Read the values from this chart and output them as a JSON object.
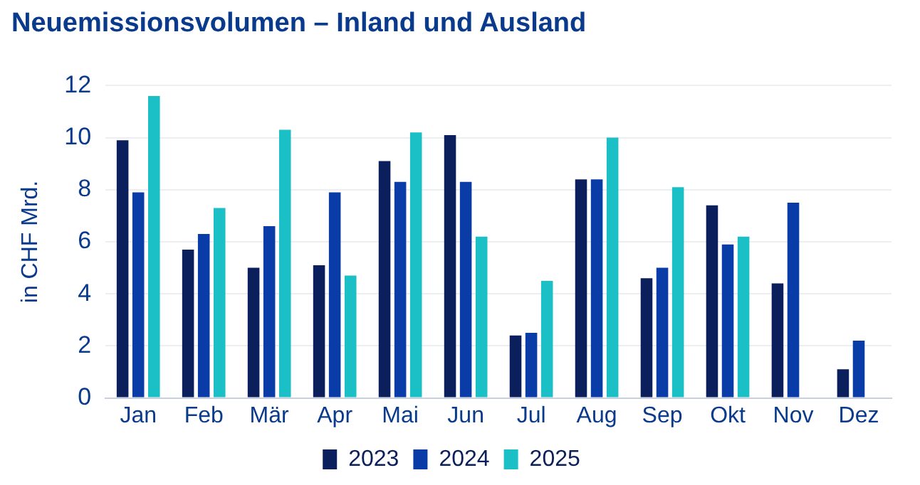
{
  "chart_data": {
    "type": "bar",
    "title": "Neuemissionsvolumen – Inland und Ausland",
    "ylabel": "in CHF Mrd.",
    "categories": [
      "Jan",
      "Feb",
      "Mär",
      "Apr",
      "Mai",
      "Jun",
      "Jul",
      "Aug",
      "Sep",
      "Okt",
      "Nov",
      "Dez"
    ],
    "series": [
      {
        "name": "2023",
        "color": "#0b1f5c",
        "values": [
          9.9,
          5.7,
          5.0,
          5.1,
          9.1,
          10.1,
          2.4,
          8.4,
          4.6,
          7.4,
          4.4,
          1.1
        ]
      },
      {
        "name": "2024",
        "color": "#0a3ca8",
        "values": [
          7.9,
          6.3,
          6.6,
          7.9,
          8.3,
          8.3,
          2.5,
          8.4,
          5.0,
          5.9,
          7.5,
          2.2
        ]
      },
      {
        "name": "2025",
        "color": "#1bbfc6",
        "values": [
          11.6,
          7.3,
          10.3,
          4.7,
          10.2,
          6.2,
          4.5,
          10.0,
          8.1,
          6.2,
          null,
          null
        ]
      }
    ],
    "ylim": [
      0,
      12
    ],
    "yticks": [
      0,
      2,
      4,
      6,
      8,
      10,
      12
    ],
    "grid": "y",
    "legend": "bottom"
  }
}
